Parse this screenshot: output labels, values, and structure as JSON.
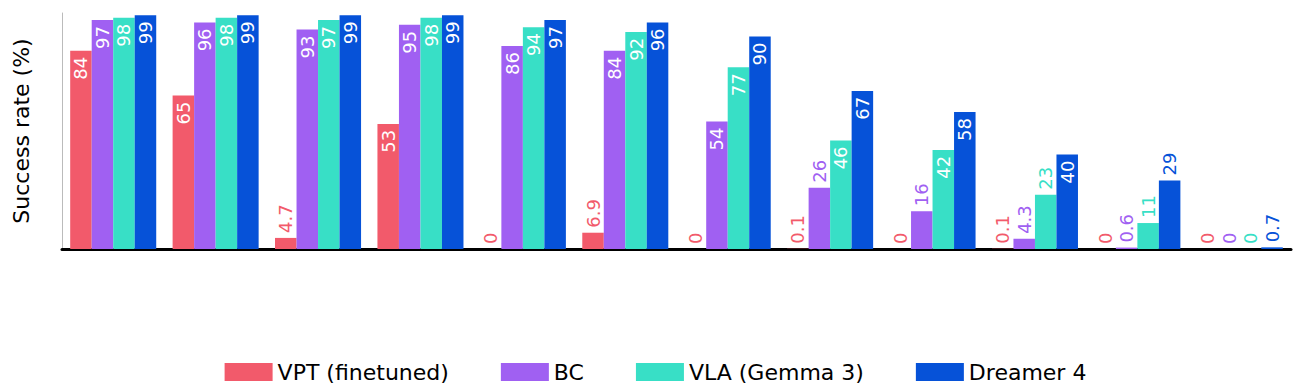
{
  "chart_data": {
    "type": "bar",
    "y_label": "Success rate (%)",
    "categories": [
      null,
      null,
      null,
      null,
      null,
      null,
      null,
      null,
      null,
      null,
      null,
      null
    ],
    "series": [
      {
        "name": "VPT (finetuned)",
        "color": "#f25a6b",
        "values": [
          84,
          65,
          4.7,
          53,
          0,
          6.9,
          0,
          0.1,
          0,
          0.1,
          0,
          0
        ]
      },
      {
        "name": "BC",
        "color": "#a060f2",
        "values": [
          97,
          96,
          93,
          95,
          86,
          84,
          54,
          26,
          16,
          4.3,
          0.6,
          0
        ]
      },
      {
        "name": "VLA (Gemma 3)",
        "color": "#38dfc6",
        "values": [
          98,
          98,
          97,
          98,
          94,
          92,
          77,
          46,
          42,
          23,
          11,
          0
        ]
      },
      {
        "name": "Dreamer 4",
        "color": "#0652d8",
        "values": [
          99,
          99,
          99,
          99,
          97,
          96,
          90,
          67,
          58,
          40,
          29,
          0.7
        ]
      }
    ],
    "ylim": [
      0,
      100
    ],
    "grid": false,
    "legend": "bottom",
    "data_labels": true,
    "tick_labels": false
  }
}
